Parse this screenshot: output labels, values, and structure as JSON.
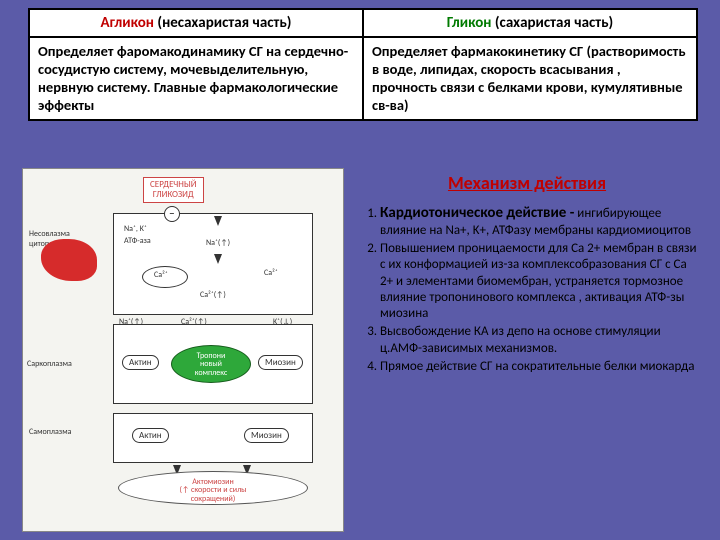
{
  "table": {
    "header_left_red": "Агликон",
    "header_left_rest": " (несахаристая часть)",
    "header_right_green": "Гликон",
    "header_right_rest": " (сахаристая часть)",
    "cell_left": "Определяет фаромакодинамику СГ на сердечно-сосудистую систему, мочевыделительную, нервную систему. Главные фармакологические эффекты",
    "cell_right": "Определяет фармакокинетику СГ (растворимость в воде, липидах, скорость всасывания , прочность связи с белками крови, кумулятивные св-ва)"
  },
  "diagram": {
    "top_label": "СЕРДЕЧНЫЙ\nГЛИКОЗИД",
    "na_k": "Na⁺, K⁺",
    "atfaza": "АТФ-аза",
    "na_in": "Na⁺(↑)",
    "ca_in": "Ca²⁺(↑)",
    "ca_out": "Ca²⁺",
    "ca_arrow": "Ca²⁺(↑)",
    "k_out": "K⁺(↓)",
    "na_inside": "Na⁺(↑)",
    "aktin1": "Актин",
    "miozin1": "Миозин",
    "aktin2": "Актин",
    "miozin2": "Миозин",
    "green": "Тропони\nновый\nкомплекс",
    "bottom": "Актомиозин\n(↑ скорости и силы\nсокращений)",
    "side_top": "Несовлазма\nцитоплазма",
    "side_mid": "Саркоплазма",
    "side_low": "Самоплазма"
  },
  "right": {
    "title": "Механизм действия",
    "item1_lead": "Кардиотоническое действие -",
    "item1_rest": "ингибирующее влияние на Na+, K+, АТФазу мембраны кардиомиоцитов",
    "item2": "Повышением проницаемости для Са 2+ мембран в связи с их конформацией из-за комплексобразования СГ с Са 2+ и элементами биомембран, устраняется тормозное влияние тропонинового комплекса , активация АТФ-зы миозина",
    "item3": "Высвобождение КА из депо на основе стимуляции ц.АМФ-зависимых механизмов.",
    "item4": "Прямое действие СГ на сократительные белки миокарда"
  }
}
